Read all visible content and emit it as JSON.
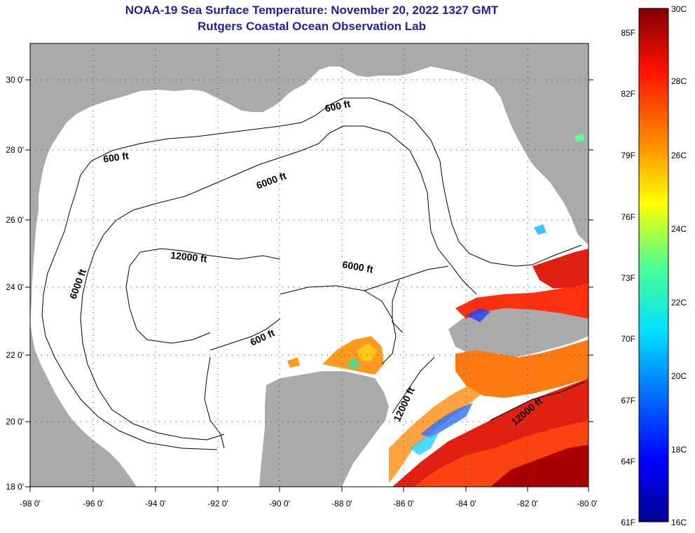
{
  "title": "NOAA-19 Sea Surface Temperature:  November 20, 2022 1327 GMT",
  "subtitle": "Rutgers Coastal Ocean Observation Lab",
  "colors": {
    "land": "#aaaaaa",
    "ocean_cloud": "#ffffff",
    "title": "#1f1fa0"
  },
  "axes": {
    "lon_labels": [
      "-98 0'",
      "-96 0'",
      "-94 0'",
      "-92 0'",
      "-90 0'",
      "-88 0'",
      "-86 0'",
      "-84 0'",
      "-82 0'",
      "-80 0'"
    ],
    "lat_labels": [
      "18 0'",
      "20 0'",
      "22 0'",
      "24 0'",
      "26 0'",
      "28 0'",
      "30 0'"
    ]
  },
  "contour_labels": [
    "600 ft",
    "600 ft",
    "6000 ft",
    "12000 ft",
    "6000 ft",
    "6000 ft",
    "600 ft",
    "12000 ft",
    "12000 ft"
  ],
  "colorbar": {
    "fahrenheit": [
      "85F",
      "82F",
      "79F",
      "76F",
      "73F",
      "70F",
      "67F",
      "64F",
      "61F"
    ],
    "celsius": [
      "30C",
      "28C",
      "26C",
      "24C",
      "22C",
      "20C",
      "18C",
      "16C"
    ]
  }
}
